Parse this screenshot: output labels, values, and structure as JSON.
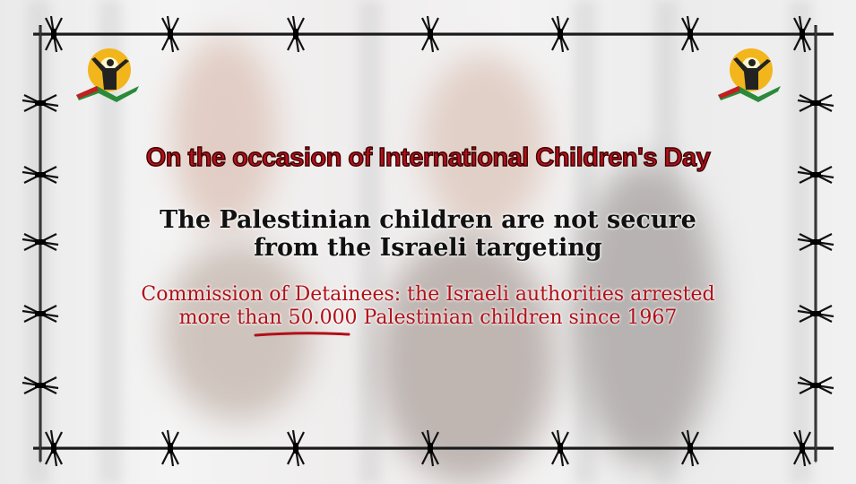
{
  "headline": "On the occasion of  International Children's Day",
  "subtitle": {
    "line1": "The Palestinian children are not secure",
    "line2": "from the Israeli targeting"
  },
  "statement": {
    "line1": "Commission of Detainees: the Israeli authorities arrested",
    "line2_pre": "more than ",
    "line2_highlight": "50.000",
    "line2_post": " Palestinian children since 1967"
  },
  "colors": {
    "headline": "#b0101a",
    "statement": "#b01018",
    "subtitle": "#111111",
    "logo_sun": "#f2b61c"
  },
  "logos": [
    "commission-of-detainees-logo-left",
    "commission-of-detainees-logo-right"
  ]
}
